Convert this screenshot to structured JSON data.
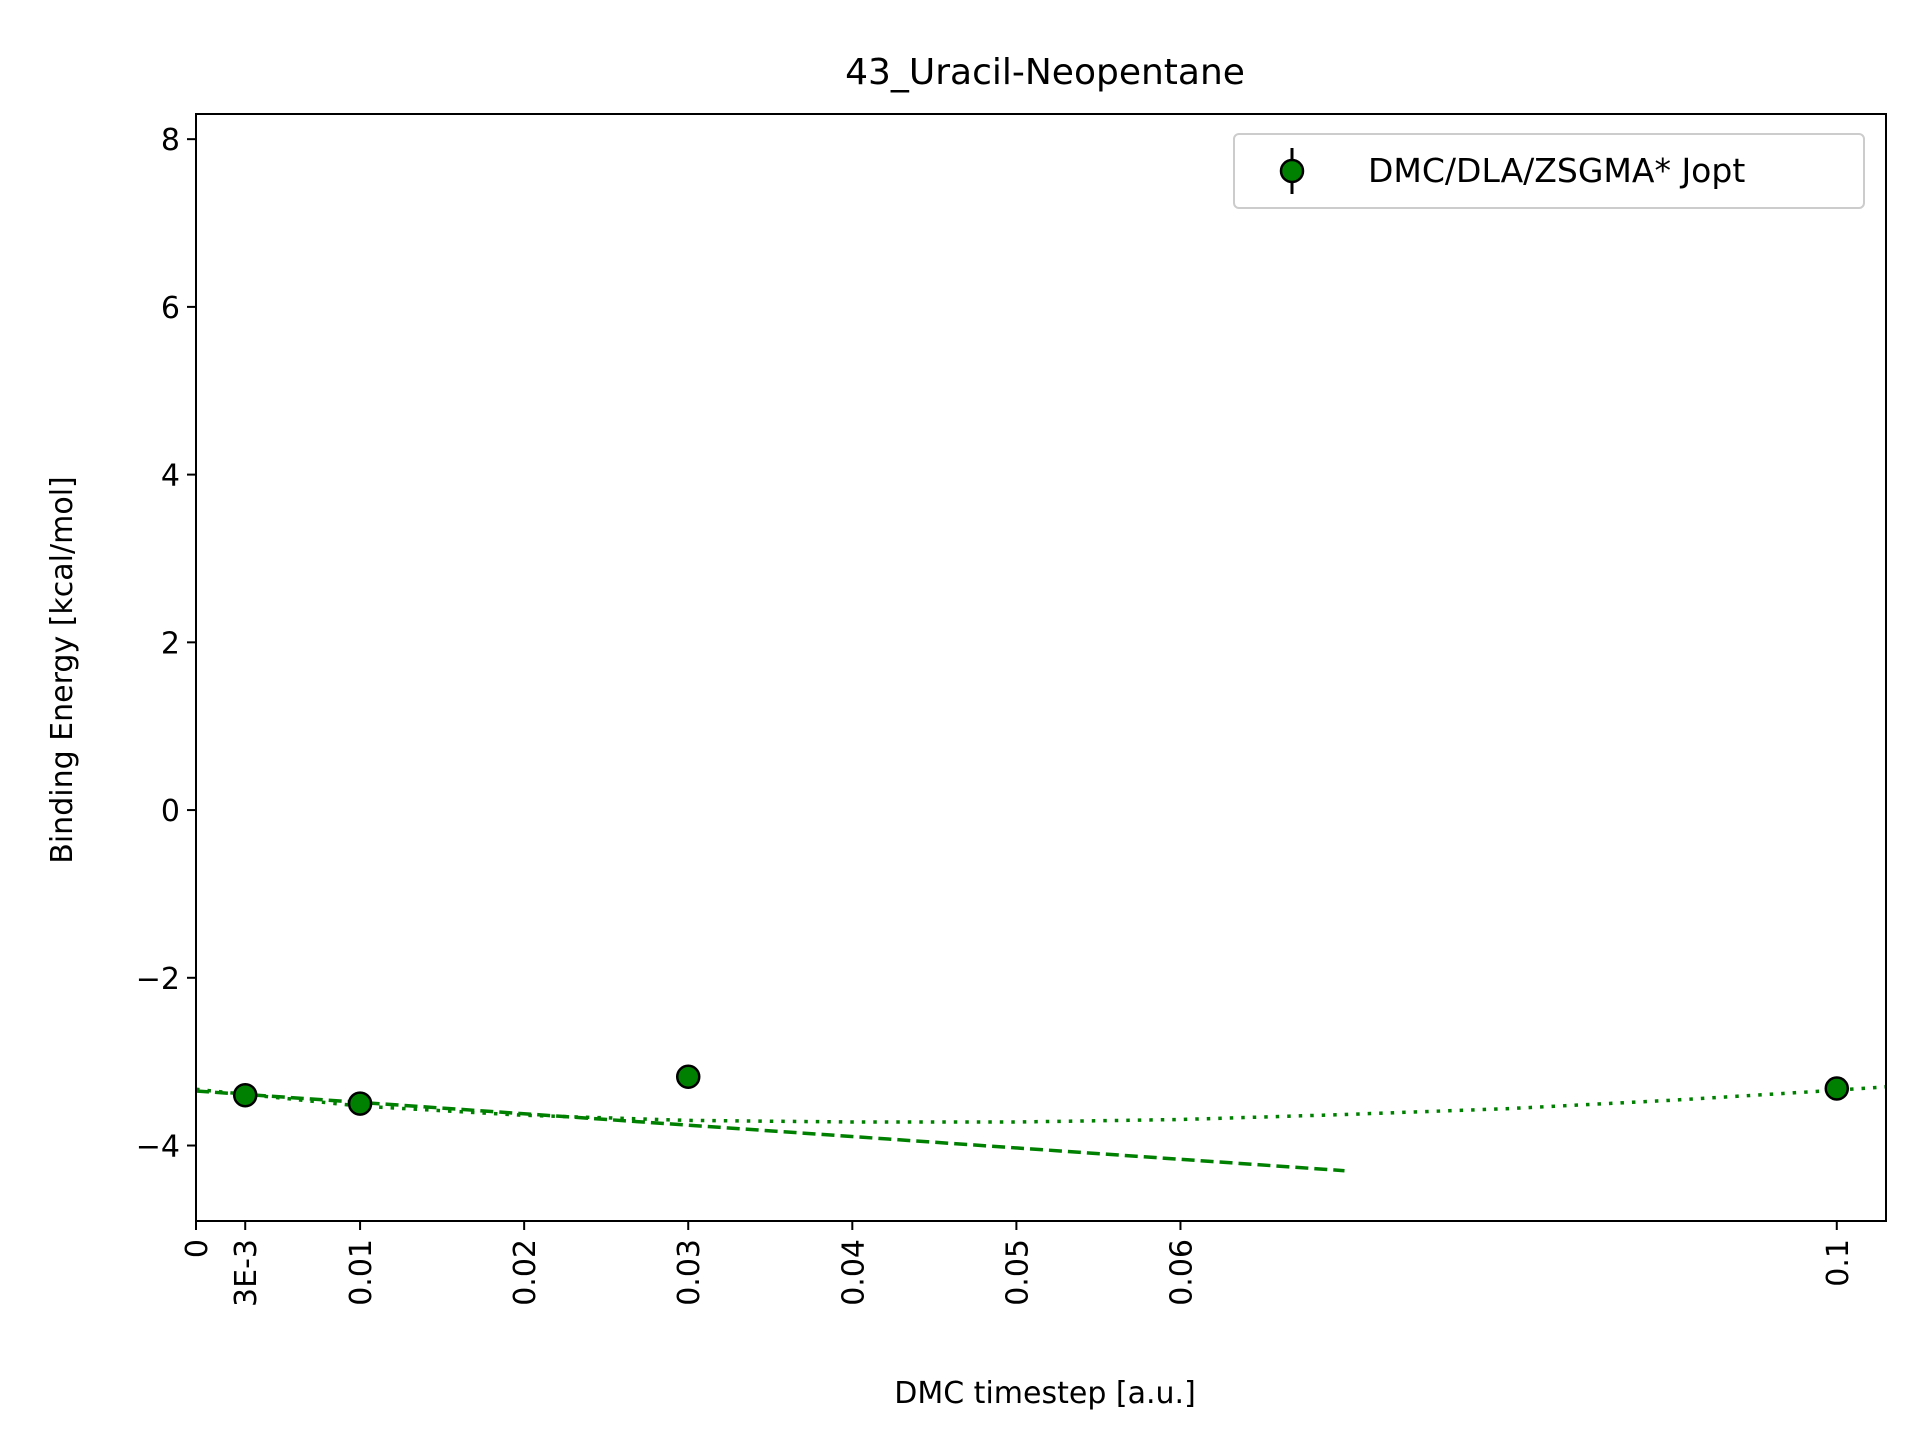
{
  "chart_data": {
    "type": "scatter",
    "title": "43_Uracil-Neopentane",
    "xlabel": "DMC timestep [a.u.]",
    "ylabel": "Binding Energy [kcal/mol]",
    "xlim": [
      0,
      0.103
    ],
    "ylim": [
      -4.9,
      8.3
    ],
    "x_ticks": [
      {
        "value": 0,
        "label": "0"
      },
      {
        "value": 0.003,
        "label": "3E-3"
      },
      {
        "value": 0.01,
        "label": "0.01"
      },
      {
        "value": 0.02,
        "label": "0.02"
      },
      {
        "value": 0.03,
        "label": "0.03"
      },
      {
        "value": 0.04,
        "label": "0.04"
      },
      {
        "value": 0.05,
        "label": "0.05"
      },
      {
        "value": 0.06,
        "label": "0.06"
      },
      {
        "value": 0.1,
        "label": "0.1"
      }
    ],
    "y_ticks": [
      {
        "value": -4,
        "label": "−4"
      },
      {
        "value": -2,
        "label": "−2"
      },
      {
        "value": 0,
        "label": "0"
      },
      {
        "value": 2,
        "label": "2"
      },
      {
        "value": 4,
        "label": "4"
      },
      {
        "value": 6,
        "label": "6"
      },
      {
        "value": 8,
        "label": "8"
      }
    ],
    "grid": false,
    "legend_position": "top-right",
    "series": [
      {
        "name": "DMC/DLA/ZSGMA* Jopt",
        "color": "#008000",
        "marker": "circle",
        "x": [
          0.003,
          0.01,
          0.03,
          0.1
        ],
        "y": [
          -3.4,
          -3.5,
          -3.18,
          -3.32
        ]
      }
    ],
    "fits": [
      {
        "style": "dashed",
        "color": "#008000",
        "x": [
          0,
          0.07
        ],
        "y": [
          -3.35,
          -4.3
        ]
      },
      {
        "style": "dotted",
        "color": "#008000",
        "x": [
          0,
          0.01,
          0.02,
          0.03,
          0.04,
          0.05,
          0.06,
          0.07,
          0.08,
          0.09,
          0.1,
          0.103
        ],
        "y": [
          -3.33,
          -3.53,
          -3.64,
          -3.7,
          -3.72,
          -3.72,
          -3.69,
          -3.63,
          -3.56,
          -3.46,
          -3.34,
          -3.3
        ]
      }
    ]
  }
}
